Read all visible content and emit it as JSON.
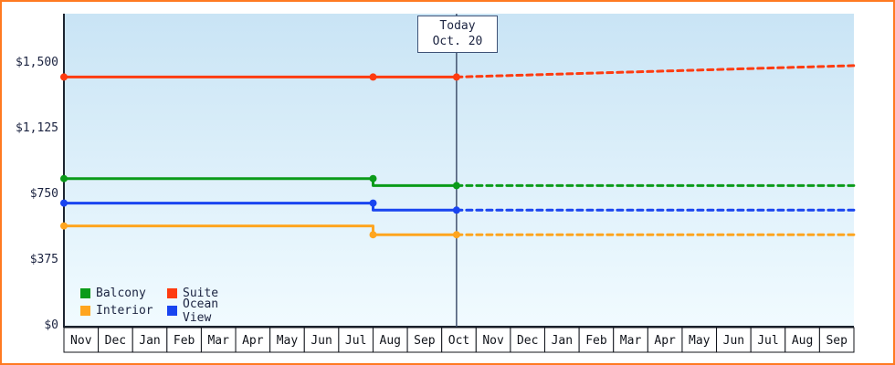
{
  "frame": {
    "border_color": "#ff7a21"
  },
  "chart_data": {
    "type": "line",
    "title": "",
    "x_axis": {
      "tick_labels": [
        "Nov",
        "Dec",
        "Jan",
        "Feb",
        "Mar",
        "Apr",
        "May",
        "Jun",
        "Jul",
        "Aug",
        "Sep",
        "Oct",
        "Nov",
        "Dec",
        "Jan",
        "Feb",
        "Mar",
        "Apr",
        "May",
        "Jun",
        "Jul",
        "Aug",
        "Sep"
      ]
    },
    "y_axis": {
      "ticks": [
        {
          "label": "$1,500",
          "value": 1500
        },
        {
          "label": "$1,125",
          "value": 1125
        },
        {
          "label": "$750",
          "value": 750
        },
        {
          "label": "$375",
          "value": 375
        },
        {
          "label": "$0",
          "value": 0
        }
      ],
      "range": [
        0,
        1780
      ]
    },
    "x_range_months": 23,
    "today": {
      "line1": "Today",
      "line2": "Oct. 20",
      "x_months": 11.43
    },
    "legend_position": "bottom-left",
    "grid": false,
    "series": [
      {
        "name": "Balcony",
        "color": "#0a9b19",
        "solid": [
          [
            0,
            840
          ],
          [
            9,
            840
          ],
          [
            9,
            800
          ],
          [
            11.43,
            800
          ]
        ],
        "dashed": [
          [
            11.43,
            800
          ],
          [
            23,
            800
          ]
        ],
        "markers": [
          [
            0,
            840
          ],
          [
            9,
            840
          ],
          [
            11.43,
            800
          ]
        ]
      },
      {
        "name": "Suite",
        "color": "#fe3b10",
        "solid": [
          [
            0,
            1420
          ],
          [
            11.43,
            1420
          ]
        ],
        "dashed": [
          [
            11.43,
            1420
          ],
          [
            23,
            1485
          ]
        ],
        "markers": [
          [
            0,
            1420
          ],
          [
            9,
            1420
          ],
          [
            11.43,
            1420
          ]
        ]
      },
      {
        "name": "Interior",
        "color": "#ffa51f",
        "solid": [
          [
            0,
            570
          ],
          [
            9,
            570
          ],
          [
            9,
            520
          ],
          [
            11.43,
            520
          ]
        ],
        "dashed": [
          [
            11.43,
            520
          ],
          [
            23,
            520
          ]
        ],
        "markers": [
          [
            0,
            570
          ],
          [
            9,
            520
          ],
          [
            11.43,
            520
          ]
        ]
      },
      {
        "name": "Ocean View",
        "color": "#1944f0",
        "solid": [
          [
            0,
            700
          ],
          [
            9,
            700
          ],
          [
            9,
            660
          ],
          [
            11.43,
            660
          ]
        ],
        "dashed": [
          [
            11.43,
            660
          ],
          [
            23,
            660
          ]
        ],
        "markers": [
          [
            0,
            700
          ],
          [
            9,
            700
          ],
          [
            11.43,
            660
          ]
        ]
      }
    ]
  },
  "legend": {
    "items": [
      {
        "label": "Balcony",
        "color": "#0a9b19"
      },
      {
        "label": "Suite",
        "color": "#fe3b10"
      },
      {
        "label": "Interior",
        "color": "#ffa51f"
      },
      {
        "label": "Ocean View",
        "color": "#1944f0"
      }
    ]
  }
}
